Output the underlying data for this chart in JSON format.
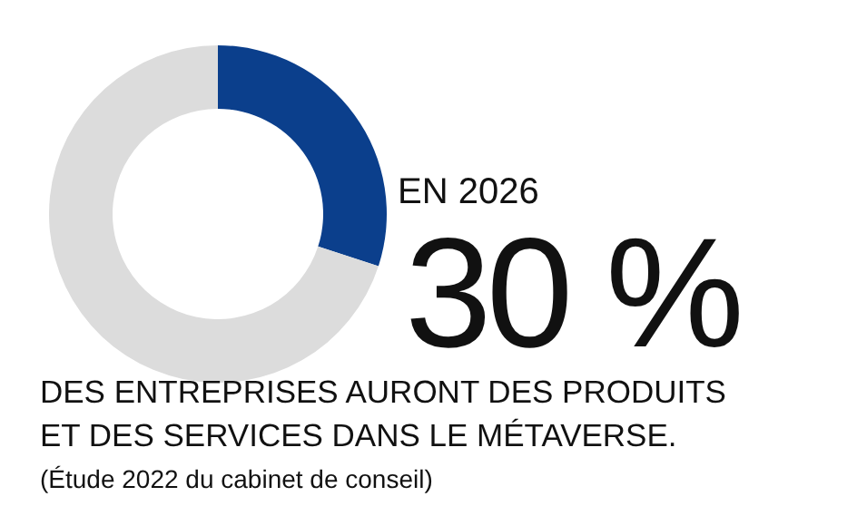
{
  "chart_data": {
    "type": "donut",
    "categories": [
      null,
      null
    ],
    "values": [
      30,
      70
    ],
    "colors": [
      "#0b3f8c",
      "#dcdcdc"
    ],
    "value_labels": [
      "30 %",
      null
    ],
    "annotations": [
      "EN 2026",
      "DES ENTREPRISES AURONT DES PRODUITS",
      "ET DES SERVICES DANS LE MÉTAVERSE.",
      "(Étude 2022 du cabinet de conseil)"
    ]
  }
}
